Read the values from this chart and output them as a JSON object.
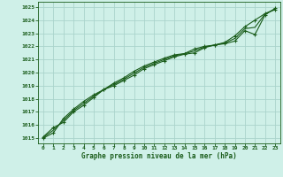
{
  "title": "Graphe pression niveau de la mer (hPa)",
  "background_color": "#cff0e8",
  "grid_color": "#aad4cc",
  "line_color": "#1a5c1a",
  "marker_color": "#1a5c1a",
  "xlim": [
    -0.5,
    23.5
  ],
  "ylim": [
    1014.6,
    1025.4
  ],
  "yticks": [
    1015,
    1016,
    1017,
    1018,
    1019,
    1020,
    1021,
    1022,
    1023,
    1024,
    1025
  ],
  "xticks": [
    0,
    1,
    2,
    3,
    4,
    5,
    6,
    7,
    8,
    9,
    10,
    11,
    12,
    13,
    14,
    15,
    16,
    17,
    18,
    19,
    20,
    21,
    22,
    23
  ],
  "series": [
    {
      "x": [
        0,
        1,
        2,
        3,
        4,
        5,
        6,
        7,
        8,
        9,
        10,
        11,
        12,
        13,
        14,
        15,
        16,
        17,
        18,
        19,
        20,
        21,
        22,
        23
      ],
      "y": [
        1015.1,
        1015.8,
        1016.2,
        1017.0,
        1017.5,
        1018.1,
        1018.7,
        1019.0,
        1019.4,
        1019.8,
        1020.3,
        1020.6,
        1020.9,
        1021.2,
        1021.4,
        1021.5,
        1021.9,
        1022.1,
        1022.2,
        1022.4,
        1023.2,
        1022.9,
        1024.4,
        1024.9
      ],
      "marker": "+",
      "lw": 0.8
    },
    {
      "x": [
        0,
        1,
        2,
        3,
        4,
        5,
        6,
        7,
        8,
        9,
        10,
        11,
        12,
        13,
        14,
        15,
        16,
        17,
        18,
        19,
        20,
        21,
        22,
        23
      ],
      "y": [
        1015.0,
        1015.4,
        1016.5,
        1017.2,
        1017.8,
        1018.3,
        1018.7,
        1019.2,
        1019.6,
        1020.1,
        1020.5,
        1020.8,
        1021.1,
        1021.35,
        1021.45,
        1021.8,
        1022.0,
        1022.1,
        1022.3,
        1022.8,
        1023.5,
        1024.0,
        1024.5,
        1024.8
      ],
      "marker": "+",
      "lw": 0.8
    },
    {
      "x": [
        0,
        1,
        2,
        3,
        4,
        5,
        6,
        7,
        8,
        9,
        10,
        11,
        12,
        13,
        14,
        15,
        16,
        17,
        18,
        19,
        20,
        21,
        22,
        23
      ],
      "y": [
        1015.05,
        1015.6,
        1016.35,
        1017.1,
        1017.65,
        1018.2,
        1018.7,
        1019.1,
        1019.5,
        1019.95,
        1020.4,
        1020.7,
        1021.0,
        1021.28,
        1021.43,
        1021.65,
        1021.95,
        1022.1,
        1022.25,
        1022.6,
        1023.35,
        1023.45,
        1024.47,
        1024.85
      ],
      "marker": null,
      "lw": 0.8
    }
  ]
}
